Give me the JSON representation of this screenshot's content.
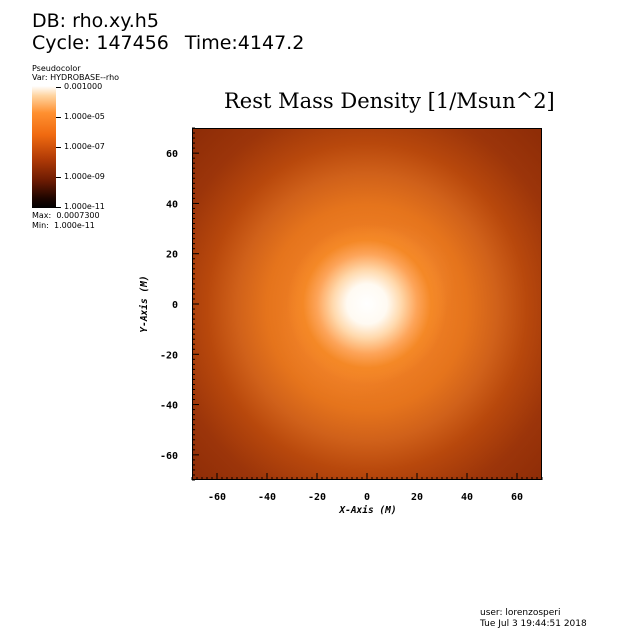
{
  "header": {
    "db_label": "DB: rho.xy.h5",
    "cycle_label": "Cycle: 147456",
    "time_label": "Time:4147.2"
  },
  "legend": {
    "kind": "Pseudocolor",
    "var": "Var: HYDROBASE--rho",
    "ticks": [
      "0.001000",
      "1.000e-05",
      "1.000e-07",
      "1.000e-09",
      "1.000e-11"
    ],
    "max": "Max:  0.0007300",
    "min": "Min:  1.000e-11",
    "colors": [
      "#ffffff",
      "#ff9030",
      "#b03a06",
      "#000000"
    ]
  },
  "chart_data": {
    "type": "heatmap",
    "title": "Rest Mass Density [1/Msun^2]",
    "xlabel": "X-Axis  (M)",
    "ylabel": "Y-Axis  (M)",
    "xlim": [
      -70,
      70
    ],
    "ylim": [
      -70,
      70
    ],
    "xticks": [
      -60,
      -40,
      -20,
      0,
      20,
      40,
      60
    ],
    "yticks": [
      60,
      40,
      20,
      0,
      -20,
      -40,
      -60
    ],
    "colorbar_range": [
      1e-11,
      0.001
    ],
    "colormap": "hot (black-red-orange-white)"
  },
  "footer": {
    "user": "user: lorenzosperi",
    "date": "Tue Jul  3 19:44:51 2018"
  }
}
